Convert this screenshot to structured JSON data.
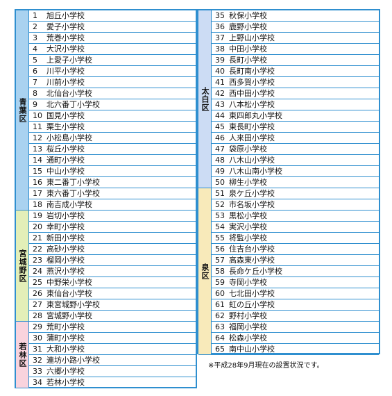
{
  "colors": {
    "border": "#2f8fcf",
    "aoba": "#a9d2f0",
    "miyagino": "#e3efb8",
    "wakabayashi": "#f9d3dd",
    "taihaku": "#ccdcf4",
    "izumi": "#f8eaba"
  },
  "note": "※平成28年9月現在の設置状況です。",
  "left_wards": [
    {
      "label": "青葉区",
      "rows": 18,
      "color": "#a9d2f0"
    },
    {
      "label": "宮城野区",
      "rows": 10,
      "color": "#e3efb8"
    },
    {
      "label": "若林区",
      "rows": 6,
      "color": "#f9d3dd"
    }
  ],
  "right_wards": [
    {
      "label": "太白区",
      "rows": 16,
      "color": "#ccdcf4"
    },
    {
      "label": "泉区",
      "rows": 15,
      "color": "#f8eaba"
    }
  ],
  "schools_left": [
    {
      "no": "1",
      "name": "旭丘小学校"
    },
    {
      "no": "2",
      "name": "愛子小学校"
    },
    {
      "no": "3",
      "name": "荒巻小学校"
    },
    {
      "no": "4",
      "name": "大沢小学校"
    },
    {
      "no": "5",
      "name": "上愛子小学校"
    },
    {
      "no": "6",
      "name": "川平小学校"
    },
    {
      "no": "7",
      "name": "川前小学校"
    },
    {
      "no": "8",
      "name": "北仙台小学校"
    },
    {
      "no": "9",
      "name": "北六番丁小学校"
    },
    {
      "no": "10",
      "name": "国見小学校"
    },
    {
      "no": "11",
      "name": "栗生小学校"
    },
    {
      "no": "12",
      "name": "小松島小学校"
    },
    {
      "no": "13",
      "name": "桜丘小学校"
    },
    {
      "no": "14",
      "name": "通町小学校"
    },
    {
      "no": "15",
      "name": "中山小学校"
    },
    {
      "no": "16",
      "name": "東二番丁小学校"
    },
    {
      "no": "17",
      "name": "東六番丁小学校"
    },
    {
      "no": "18",
      "name": "南吉成小学校"
    },
    {
      "no": "19",
      "name": "岩切小学校"
    },
    {
      "no": "20",
      "name": "幸町小学校"
    },
    {
      "no": "21",
      "name": "新田小学校"
    },
    {
      "no": "22",
      "name": "高砂小学校"
    },
    {
      "no": "23",
      "name": "榴岡小学校"
    },
    {
      "no": "24",
      "name": "燕沢小学校"
    },
    {
      "no": "25",
      "name": "中野栄小学校"
    },
    {
      "no": "26",
      "name": "東仙台小学校"
    },
    {
      "no": "27",
      "name": "東宮城野小学校"
    },
    {
      "no": "28",
      "name": "宮城野小学校"
    },
    {
      "no": "29",
      "name": "荒町小学校"
    },
    {
      "no": "30",
      "name": "蒲町小学校"
    },
    {
      "no": "31",
      "name": "大和小学校"
    },
    {
      "no": "32",
      "name": "連坊小路小学校"
    },
    {
      "no": "33",
      "name": "六郷小学校"
    },
    {
      "no": "34",
      "name": "若林小学校"
    }
  ],
  "schools_right": [
    {
      "no": "35",
      "name": "秋保小学校"
    },
    {
      "no": "36",
      "name": "鹿野小学校"
    },
    {
      "no": "37",
      "name": "上野山小学校"
    },
    {
      "no": "38",
      "name": "中田小学校"
    },
    {
      "no": "39",
      "name": "長町小学校"
    },
    {
      "no": "40",
      "name": "長町南小学校"
    },
    {
      "no": "41",
      "name": "西多賀小学校"
    },
    {
      "no": "42",
      "name": "西中田小学校"
    },
    {
      "no": "43",
      "name": "八本松小学校"
    },
    {
      "no": "44",
      "name": "東四郎丸小学校"
    },
    {
      "no": "45",
      "name": "東長町小学校"
    },
    {
      "no": "46",
      "name": "人来田小学校"
    },
    {
      "no": "47",
      "name": "袋原小学校"
    },
    {
      "no": "48",
      "name": "八木山小学校"
    },
    {
      "no": "49",
      "name": "八木山南小学校"
    },
    {
      "no": "50",
      "name": "柳生小学校"
    },
    {
      "no": "51",
      "name": "泉ケ丘小学校"
    },
    {
      "no": "52",
      "name": "市名坂小学校"
    },
    {
      "no": "53",
      "name": "黒松小学校"
    },
    {
      "no": "54",
      "name": "実沢小学校"
    },
    {
      "no": "55",
      "name": "将監小学校"
    },
    {
      "no": "56",
      "name": "住吉台小学校"
    },
    {
      "no": "57",
      "name": "高森東小学校"
    },
    {
      "no": "58",
      "name": "長命ケ丘小学校"
    },
    {
      "no": "59",
      "name": "寺岡小学校"
    },
    {
      "no": "60",
      "name": "七北田小学校"
    },
    {
      "no": "61",
      "name": "虹の丘小学校"
    },
    {
      "no": "62",
      "name": "野村小学校"
    },
    {
      "no": "63",
      "name": "福岡小学校"
    },
    {
      "no": "64",
      "name": "松森小学校"
    },
    {
      "no": "65",
      "name": "南中山小学校"
    }
  ]
}
